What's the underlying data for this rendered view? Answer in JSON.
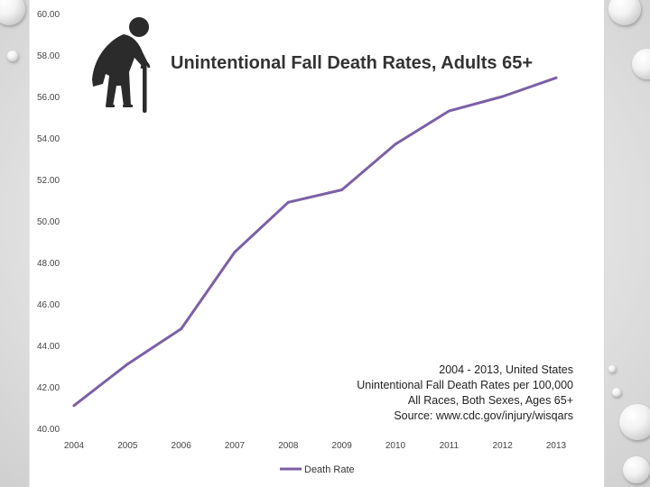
{
  "colors": {
    "line": "#7b60a6",
    "icon": "#2b2b2b",
    "axis_text": "#444444",
    "slide_background": "#e2e2e2"
  },
  "icon": "elderly-person-with-cane-icon",
  "chart_data": {
    "type": "line",
    "title": "Unintentional Fall Death Rates, Adults 65+",
    "xlabel": "",
    "ylabel": "",
    "categories": [
      "2004",
      "2005",
      "2006",
      "2007",
      "2008",
      "2009",
      "2010",
      "2011",
      "2012",
      "2013"
    ],
    "series": [
      {
        "name": "Death Rate",
        "values": [
          41.1,
          43.1,
          44.8,
          48.5,
          50.9,
          51.5,
          53.7,
          55.3,
          56.0,
          56.9
        ]
      }
    ],
    "ylim": [
      40,
      60
    ],
    "y_ticks": [
      "40.00",
      "42.00",
      "44.00",
      "46.00",
      "48.00",
      "50.00",
      "52.00",
      "54.00",
      "56.00",
      "58.00",
      "60.00"
    ],
    "y_tick_values": [
      40,
      42,
      44,
      46,
      48,
      50,
      52,
      54,
      56,
      58,
      60
    ],
    "grid": false,
    "legend": {
      "position": "bottom",
      "entries": [
        "Death Rate"
      ]
    },
    "annotation_lines": [
      "2004 - 2013, United States",
      "Unintentional Fall Death Rates per 100,000",
      "All Races, Both Sexes, Ages 65+",
      "Source: www.cdc.gov/injury/wisqars"
    ]
  }
}
